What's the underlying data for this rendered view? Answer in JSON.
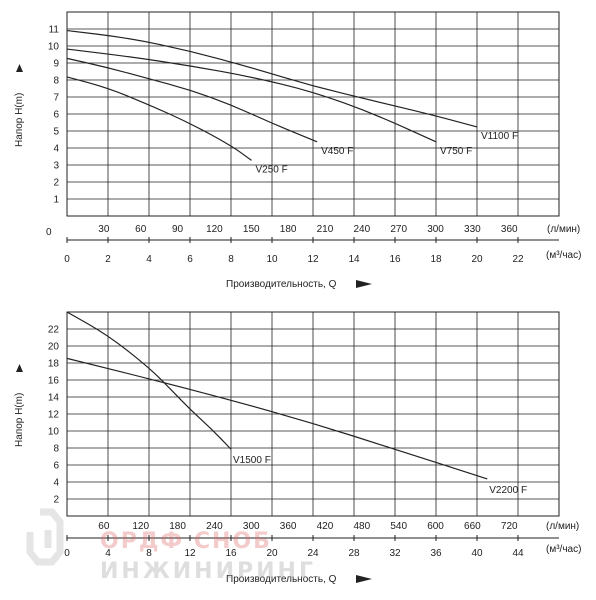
{
  "chart_data": [
    {
      "type": "line",
      "ylabel": "Напор H(m)",
      "xlabel": "Производительность, Q",
      "y_ticks": [
        "1",
        "2",
        "3",
        "4",
        "5",
        "6",
        "7",
        "8",
        "9",
        "10",
        "11"
      ],
      "x_ticks_lmin": [
        "30",
        "60",
        "90",
        "120",
        "150",
        "180",
        "210",
        "240",
        "270",
        "300",
        "330",
        "360"
      ],
      "x_unit_lmin": "(л/мин)",
      "x_ticks_m3": [
        "0",
        "2",
        "4",
        "6",
        "8",
        "10",
        "12",
        "14",
        "16",
        "18",
        "20",
        "22"
      ],
      "x_unit_m3": "(м³/час)",
      "zero_label": "0",
      "xlim": [
        0,
        24
      ],
      "ylim": [
        0,
        11
      ],
      "series": [
        {
          "name": "V250 F",
          "x": [
            0,
            2,
            4,
            6,
            8,
            9
          ],
          "y": [
            7.5,
            6.9,
            6.0,
            5.0,
            3.8,
            3.0
          ]
        },
        {
          "name": "V450 F",
          "x": [
            0,
            2,
            4,
            6,
            8,
            10,
            12.2
          ],
          "y": [
            8.5,
            8.0,
            7.4,
            6.8,
            6.0,
            5.0,
            4.0
          ]
        },
        {
          "name": "V750 F",
          "x": [
            0,
            3,
            6,
            9,
            12,
            15,
            18
          ],
          "y": [
            9.0,
            8.6,
            8.1,
            7.5,
            6.7,
            5.5,
            4.0
          ]
        },
        {
          "name": "V1100 F",
          "x": [
            0,
            3,
            6,
            9,
            12,
            15,
            18,
            20
          ],
          "y": [
            10.0,
            9.6,
            8.9,
            8.0,
            7.0,
            6.2,
            5.4,
            4.8
          ]
        }
      ]
    },
    {
      "type": "line",
      "ylabel": "Напор H(m)",
      "xlabel": "Производительность, Q",
      "y_ticks": [
        "2",
        "4",
        "6",
        "8",
        "10",
        "12",
        "14",
        "16",
        "18",
        "20",
        "22"
      ],
      "x_ticks_lmin": [
        "60",
        "120",
        "180",
        "240",
        "300",
        "360",
        "420",
        "480",
        "540",
        "600",
        "660",
        "720"
      ],
      "x_unit_lmin": "(л/мин)",
      "x_ticks_m3": [
        "0",
        "4",
        "8",
        "12",
        "16",
        "20",
        "24",
        "28",
        "32",
        "36",
        "40",
        "44"
      ],
      "x_unit_m3": "(м³/час)",
      "zero_label": "0",
      "xlim": [
        0,
        48
      ],
      "ylim": [
        0,
        22
      ],
      "series": [
        {
          "name": "V1500 F",
          "x": [
            0,
            4,
            8,
            10,
            12,
            14,
            16
          ],
          "y": [
            22,
            19.5,
            16,
            13.8,
            11.5,
            9.5,
            7.2
          ]
        },
        {
          "name": "V2200 F",
          "x": [
            0,
            8,
            16,
            24,
            32,
            41
          ],
          "y": [
            17,
            14.8,
            12.5,
            10.0,
            7.2,
            4.0
          ]
        }
      ]
    }
  ],
  "watermark": {
    "line1": "ОРДФ СНОБ",
    "line2": "ИНЖИНИРИНГ"
  }
}
